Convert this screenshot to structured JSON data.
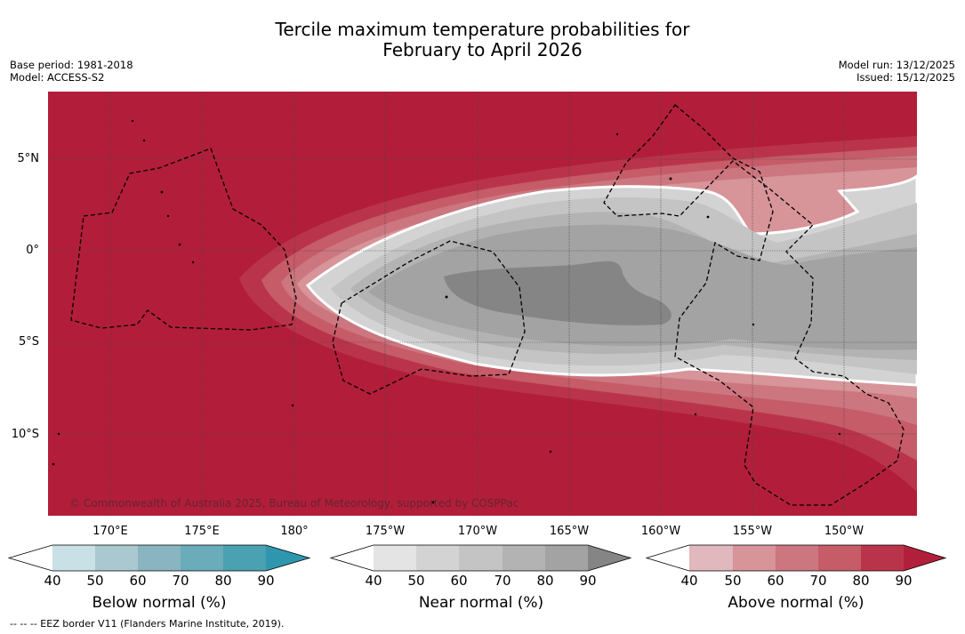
{
  "title_line1": "Tercile maximum temperature probabilities for",
  "title_line2": "February to April 2026",
  "base_period": "Base period: 1981-2018",
  "model": "Model: ACCESS-S2",
  "model_run": "Model run: 13/12/2025",
  "issued": "Issued: 15/12/2025",
  "lat_labels": [
    "5°N",
    "0°",
    "5°S",
    "10°S"
  ],
  "lon_labels": [
    "170°E",
    "175°E",
    "180°",
    "175°W",
    "170°W",
    "165°W",
    "160°W",
    "155°W",
    "150°W"
  ],
  "copyright": "© Commonwealth of Australia 2025, Bureau of Meteorology, supported by COSPPac",
  "colorbars": [
    {
      "title": "Below normal (%)",
      "ticks": [
        "40",
        "50",
        "60",
        "70",
        "80",
        "90"
      ],
      "colors": [
        "#ffffff",
        "#c8e0e6",
        "#a9c8cf",
        "#89b5c1",
        "#6aacb9",
        "#4aa1b2",
        "#2e97ad"
      ]
    },
    {
      "title": "Near normal (%)",
      "ticks": [
        "40",
        "50",
        "60",
        "70",
        "80",
        "90"
      ],
      "colors": [
        "#ffffff",
        "#e4e4e4",
        "#d3d3d3",
        "#c4c4c4",
        "#b3b3b3",
        "#a3a3a3",
        "#858585"
      ]
    },
    {
      "title": "Above normal (%)",
      "ticks": [
        "40",
        "50",
        "60",
        "70",
        "80",
        "90"
      ],
      "colors": [
        "#ffffff",
        "#e0b8bd",
        "#d79499",
        "#cc7680",
        "#c55c68",
        "#b9344a",
        "#b21f3a"
      ]
    }
  ],
  "map_colors": {
    "above_90": "#b21e3a",
    "above_80": "#b9344a",
    "above_70": "#c55c68",
    "above_60": "#cc7680",
    "above_50": "#d79499",
    "near_40": "#d3d3d3",
    "near_50": "#c4c4c4",
    "near_60": "#b3b3b3",
    "near_70": "#a3a3a3",
    "near_80": "#858585"
  },
  "footnote": "-- -- -- EEZ border V11 (Flanders Marine Institute, 2019)."
}
